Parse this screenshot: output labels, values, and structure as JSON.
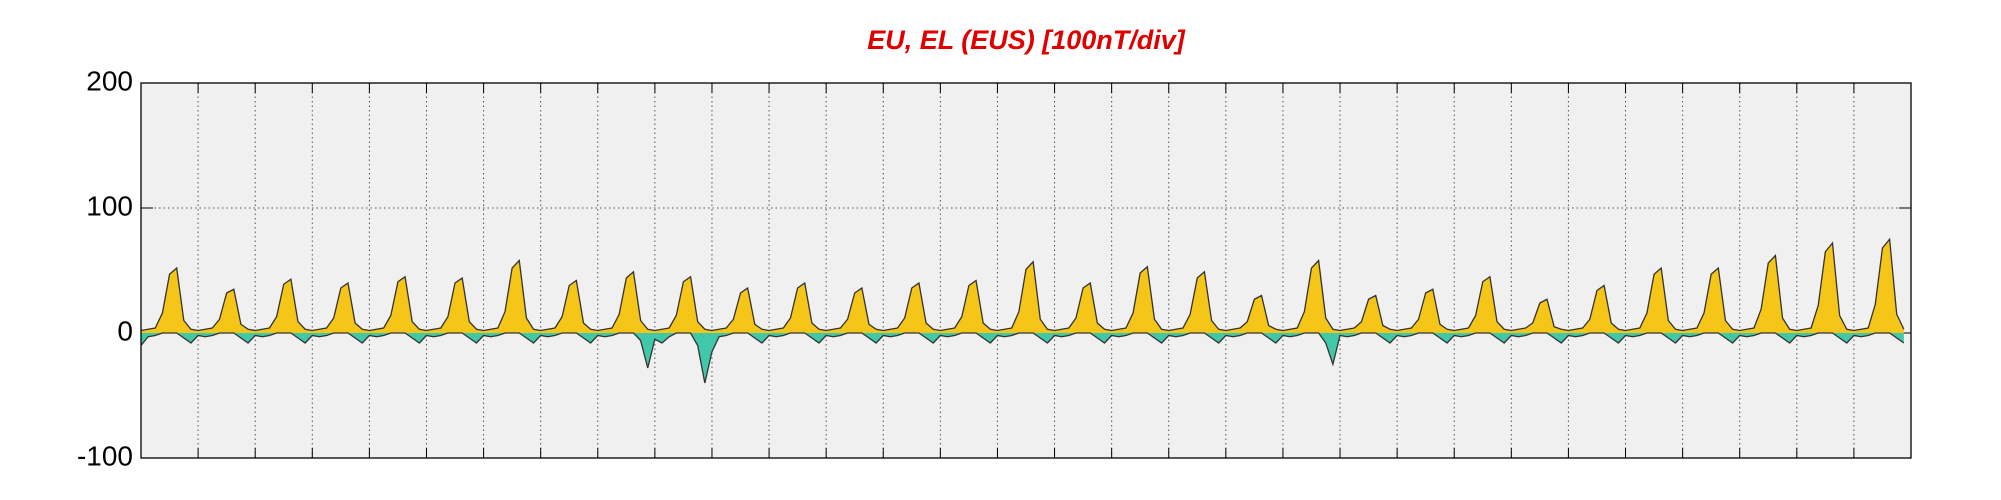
{
  "chart_data": {
    "type": "area",
    "title": "EU, EL (EUS)  [100nT/div]",
    "xlim": [
      0,
      31
    ],
    "ylim": [
      -100,
      200
    ],
    "yticks": [
      -100,
      0,
      100,
      200
    ],
    "grid": true,
    "x": [
      0,
      0.125,
      0.25,
      0.375,
      0.5,
      0.625,
      0.75,
      0.875,
      1,
      1.125,
      1.25,
      1.375,
      1.5,
      1.625,
      1.75,
      1.875,
      2,
      2.125,
      2.25,
      2.375,
      2.5,
      2.625,
      2.75,
      2.875,
      3,
      3.125,
      3.25,
      3.375,
      3.5,
      3.625,
      3.75,
      3.875,
      4,
      4.125,
      4.25,
      4.375,
      4.5,
      4.625,
      4.75,
      4.875,
      5,
      5.125,
      5.25,
      5.375,
      5.5,
      5.625,
      5.75,
      5.875,
      6,
      6.125,
      6.25,
      6.375,
      6.5,
      6.625,
      6.75,
      6.875,
      7,
      7.125,
      7.25,
      7.375,
      7.5,
      7.625,
      7.75,
      7.875,
      8,
      8.125,
      8.25,
      8.375,
      8.5,
      8.625,
      8.75,
      8.875,
      9,
      9.125,
      9.25,
      9.375,
      9.5,
      9.625,
      9.75,
      9.875,
      10,
      10.125,
      10.25,
      10.375,
      10.5,
      10.625,
      10.75,
      10.875,
      11,
      11.125,
      11.25,
      11.375,
      11.5,
      11.625,
      11.75,
      11.875,
      12,
      12.125,
      12.25,
      12.375,
      12.5,
      12.625,
      12.75,
      12.875,
      13,
      13.125,
      13.25,
      13.375,
      13.5,
      13.625,
      13.75,
      13.875,
      14,
      14.125,
      14.25,
      14.375,
      14.5,
      14.625,
      14.75,
      14.875,
      15,
      15.125,
      15.25,
      15.375,
      15.5,
      15.625,
      15.75,
      15.875,
      16,
      16.125,
      16.25,
      16.375,
      16.5,
      16.625,
      16.75,
      16.875,
      17,
      17.125,
      17.25,
      17.375,
      17.5,
      17.625,
      17.75,
      17.875,
      18,
      18.125,
      18.25,
      18.375,
      18.5,
      18.625,
      18.75,
      18.875,
      19,
      19.125,
      19.25,
      19.375,
      19.5,
      19.625,
      19.75,
      19.875,
      20,
      20.125,
      20.25,
      20.375,
      20.5,
      20.625,
      20.75,
      20.875,
      21,
      21.125,
      21.25,
      21.375,
      21.5,
      21.625,
      21.75,
      21.875,
      22,
      22.125,
      22.25,
      22.375,
      22.5,
      22.625,
      22.75,
      22.875,
      23,
      23.125,
      23.25,
      23.375,
      23.5,
      23.625,
      23.75,
      23.875,
      24,
      24.125,
      24.25,
      24.375,
      24.5,
      24.625,
      24.75,
      24.875,
      25,
      25.125,
      25.25,
      25.375,
      25.5,
      25.625,
      25.75,
      25.875,
      26,
      26.125,
      26.25,
      26.375,
      26.5,
      26.625,
      26.75,
      26.875,
      27,
      27.125,
      27.25,
      27.375,
      27.5,
      27.625,
      27.75,
      27.875,
      28,
      28.125,
      28.25,
      28.375,
      28.5,
      28.625,
      28.75,
      28.875,
      29,
      29.125,
      29.25,
      29.375,
      29.5,
      29.625,
      29.75,
      29.875,
      30,
      30.125,
      30.25,
      30.375,
      30.5,
      30.625,
      30.75,
      30.875
    ],
    "series": [
      {
        "name": "EU",
        "color": "#f5c518",
        "values": [
          2,
          3,
          4,
          16,
          47,
          52,
          10,
          3,
          2,
          3,
          4,
          11,
          32,
          35,
          7,
          3,
          2,
          3,
          4,
          13,
          39,
          43,
          9,
          3,
          2,
          3,
          4,
          12,
          36,
          40,
          8,
          3,
          2,
          3,
          4,
          14,
          41,
          45,
          9,
          3,
          2,
          3,
          4,
          13,
          40,
          44,
          9,
          3,
          2,
          3,
          4,
          17,
          52,
          58,
          12,
          3,
          2,
          3,
          4,
          13,
          38,
          42,
          8,
          3,
          2,
          3,
          4,
          15,
          44,
          49,
          10,
          3,
          2,
          3,
          4,
          14,
          41,
          45,
          9,
          3,
          2,
          3,
          4,
          11,
          32,
          36,
          7,
          3,
          2,
          3,
          4,
          12,
          36,
          40,
          8,
          3,
          2,
          3,
          4,
          11,
          32,
          36,
          7,
          3,
          2,
          3,
          4,
          12,
          36,
          40,
          8,
          3,
          2,
          3,
          4,
          13,
          38,
          42,
          8,
          3,
          2,
          3,
          4,
          17,
          51,
          57,
          11,
          3,
          2,
          3,
          4,
          12,
          36,
          40,
          8,
          3,
          2,
          3,
          4,
          16,
          48,
          53,
          11,
          3,
          2,
          3,
          4,
          15,
          44,
          49,
          10,
          3,
          2,
          3,
          4,
          9,
          27,
          30,
          6,
          3,
          2,
          3,
          4,
          17,
          52,
          58,
          12,
          3,
          2,
          3,
          4,
          9,
          27,
          30,
          6,
          3,
          2,
          3,
          4,
          11,
          32,
          35,
          7,
          3,
          2,
          3,
          4,
          14,
          41,
          45,
          9,
          3,
          2,
          3,
          4,
          8,
          24,
          27,
          5,
          3,
          2,
          3,
          4,
          11,
          34,
          38,
          8,
          3,
          2,
          3,
          4,
          16,
          47,
          52,
          10,
          3,
          2,
          3,
          4,
          16,
          47,
          52,
          10,
          3,
          2,
          3,
          4,
          19,
          56,
          62,
          12,
          3,
          2,
          3,
          4,
          22,
          65,
          72,
          14,
          3,
          2,
          3,
          4,
          23,
          68,
          75,
          15,
          3
        ]
      },
      {
        "name": "EL",
        "color": "#40c8a8",
        "values": [
          -10,
          -3,
          -2,
          0,
          0,
          0,
          -4,
          -8,
          -2,
          -3,
          -2,
          0,
          0,
          0,
          -4,
          -8,
          -2,
          -3,
          -2,
          0,
          0,
          0,
          -4,
          -8,
          -2,
          -3,
          -2,
          0,
          0,
          0,
          -4,
          -8,
          -2,
          -3,
          -2,
          0,
          0,
          0,
          -4,
          -8,
          -2,
          -3,
          -2,
          0,
          0,
          0,
          -4,
          -8,
          -2,
          -3,
          -2,
          0,
          0,
          0,
          -4,
          -8,
          -2,
          -3,
          -2,
          0,
          0,
          0,
          -4,
          -8,
          -2,
          -3,
          -2,
          0,
          0,
          0,
          -6,
          -28,
          -5,
          -8,
          -3,
          0,
          0,
          0,
          -10,
          -40,
          -15,
          -3,
          -2,
          0,
          0,
          0,
          -4,
          -8,
          -2,
          -3,
          -2,
          0,
          0,
          0,
          -4,
          -8,
          -2,
          -3,
          -2,
          0,
          0,
          0,
          -4,
          -8,
          -2,
          -3,
          -2,
          0,
          0,
          0,
          -4,
          -8,
          -2,
          -3,
          -2,
          0,
          0,
          0,
          -4,
          -8,
          -2,
          -3,
          -2,
          0,
          0,
          0,
          -4,
          -8,
          -2,
          -3,
          -2,
          0,
          0,
          0,
          -4,
          -8,
          -2,
          -3,
          -2,
          0,
          0,
          0,
          -4,
          -8,
          -2,
          -3,
          -2,
          0,
          0,
          0,
          -4,
          -8,
          -2,
          -3,
          -2,
          0,
          0,
          0,
          -4,
          -8,
          -2,
          -3,
          -2,
          0,
          0,
          0,
          -8,
          -25,
          -2,
          -3,
          -2,
          0,
          0,
          0,
          -4,
          -8,
          -2,
          -3,
          -2,
          0,
          0,
          0,
          -4,
          -8,
          -2,
          -3,
          -2,
          0,
          0,
          0,
          -4,
          -8,
          -2,
          -3,
          -2,
          0,
          0,
          0,
          -4,
          -8,
          -2,
          -3,
          -2,
          0,
          0,
          0,
          -4,
          -8,
          -2,
          -3,
          -2,
          0,
          0,
          0,
          -4,
          -8,
          -2,
          -3,
          -2,
          0,
          0,
          0,
          -4,
          -8,
          -2,
          -3,
          -2,
          0,
          0,
          0,
          -4,
          -8,
          -2,
          -3,
          -2,
          0,
          0,
          0,
          -4,
          -8,
          -2,
          -3,
          -2,
          0,
          0,
          0,
          -4,
          -8
        ]
      }
    ]
  }
}
